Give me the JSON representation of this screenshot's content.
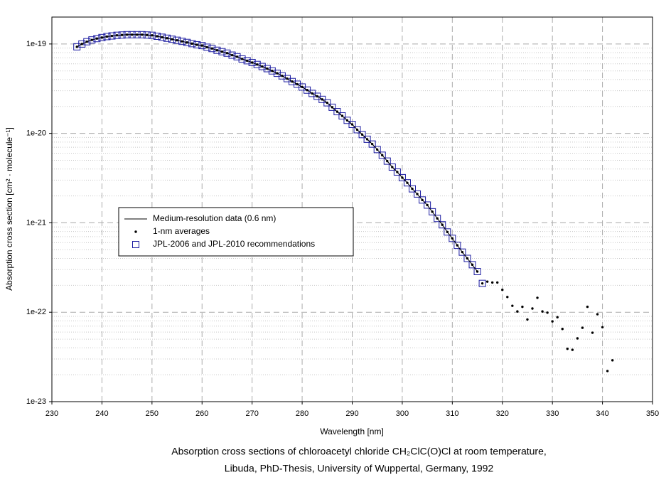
{
  "chart_data": {
    "type": "line",
    "caption": [
      "Absorption cross sections of chloroacetyl chloride CH₂ClC(O)Cl at room temperature,",
      "Libuda, PhD-Thesis, University of Wuppertal, Germany, 1992"
    ],
    "xlabel": "Wavelength [nm]",
    "ylabel": "Absorption cross section [cm² · molecule⁻¹]",
    "xlim": [
      230,
      350
    ],
    "xticks": [
      230,
      240,
      250,
      260,
      270,
      280,
      290,
      300,
      310,
      320,
      330,
      340,
      350
    ],
    "ylim": [
      1e-23,
      2e-19
    ],
    "yticks": [
      1e-23,
      1e-22,
      1e-21,
      1e-20,
      1e-19
    ],
    "yminorticks": [
      2e-23,
      3e-23,
      4e-23,
      5e-23,
      6e-23,
      7e-23,
      8e-23,
      9e-23,
      2e-22,
      3e-22,
      4e-22,
      5e-22,
      6e-22,
      7e-22,
      8e-22,
      9e-22,
      2e-21,
      3e-21,
      4e-21,
      5e-21,
      6e-21,
      7e-21,
      8e-21,
      9e-21,
      2e-20,
      3e-20,
      4e-20,
      5e-20,
      6e-20,
      7e-20,
      8e-20,
      9e-20
    ],
    "ylog": true,
    "grid": true,
    "legend": "center-left",
    "series": [
      {
        "name": "Medium-resolution data (0.6 nm)",
        "style": "line",
        "color": "#000000",
        "x": [
          235,
          236,
          237,
          238,
          239,
          240,
          241,
          242,
          243,
          244,
          245,
          246,
          247,
          248,
          249,
          250,
          251,
          252,
          253,
          254,
          255,
          256,
          257,
          258,
          259,
          260,
          261,
          262,
          263,
          264,
          265,
          266,
          267,
          268,
          269,
          270,
          271,
          272,
          273,
          274,
          275,
          276,
          277,
          278,
          279,
          280,
          281,
          282,
          283,
          284,
          285,
          286,
          287,
          288,
          289,
          290,
          291,
          292,
          293,
          294,
          295,
          296,
          297,
          298,
          299,
          300,
          301,
          302,
          303,
          304,
          305,
          306,
          307,
          308,
          309,
          310,
          311,
          312,
          313,
          314,
          315
        ],
        "values": [
          9.3e-20,
          1e-19,
          1.06e-19,
          1.11e-19,
          1.15e-19,
          1.18e-19,
          1.21e-19,
          1.23e-19,
          1.25e-19,
          1.26e-19,
          1.27e-19,
          1.27e-19,
          1.27e-19,
          1.27e-19,
          1.26e-19,
          1.25e-19,
          1.22e-19,
          1.19e-19,
          1.16e-19,
          1.13e-19,
          1.1e-19,
          1.07e-19,
          1.04e-19,
          1.01e-19,
          9.8e-20,
          9.6e-20,
          9.2e-20,
          8.9e-20,
          8.5e-20,
          8.2e-20,
          7.9e-20,
          7.5e-20,
          7.2e-20,
          6.8e-20,
          6.5e-20,
          6.2e-20,
          5.9e-20,
          5.6e-20,
          5.3e-20,
          5e-20,
          4.7e-20,
          4.4e-20,
          4.1e-20,
          3.8e-20,
          3.55e-20,
          3.3e-20,
          3.05e-20,
          2.8e-20,
          2.6e-20,
          2.4e-20,
          2.2e-20,
          1.96e-20,
          1.75e-20,
          1.57e-20,
          1.4e-20,
          1.26e-20,
          1.1e-20,
          9.7e-21,
          8.6e-21,
          7.6e-21,
          6.6e-21,
          5.7e-21,
          4.9e-21,
          4.2e-21,
          3.7e-21,
          3.2e-21,
          2.8e-21,
          2.4e-21,
          2.1e-21,
          1.8e-21,
          1.58e-21,
          1.33e-21,
          1.12e-21,
          9.5e-22,
          7.9e-22,
          6.7e-22,
          5.6e-22,
          4.7e-22,
          4e-22,
          3.4e-22,
          2.85e-22
        ]
      },
      {
        "name": "1-nm averages",
        "style": "dot",
        "color": "#000000",
        "x": [
          235,
          236,
          237,
          238,
          239,
          240,
          241,
          242,
          243,
          244,
          245,
          246,
          247,
          248,
          249,
          250,
          251,
          252,
          253,
          254,
          255,
          256,
          257,
          258,
          259,
          260,
          261,
          262,
          263,
          264,
          265,
          266,
          267,
          268,
          269,
          270,
          271,
          272,
          273,
          274,
          275,
          276,
          277,
          278,
          279,
          280,
          281,
          282,
          283,
          284,
          285,
          286,
          287,
          288,
          289,
          290,
          291,
          292,
          293,
          294,
          295,
          296,
          297,
          298,
          299,
          300,
          301,
          302,
          303,
          304,
          305,
          306,
          307,
          308,
          309,
          310,
          311,
          312,
          313,
          314,
          315,
          316,
          317,
          318,
          319,
          320,
          321,
          322,
          323,
          324,
          325,
          326,
          327,
          328,
          329,
          330,
          331,
          332,
          333,
          334,
          335,
          336,
          337,
          338,
          339,
          340,
          341,
          342
        ],
        "values": [
          9.3e-20,
          1e-19,
          1.06e-19,
          1.11e-19,
          1.15e-19,
          1.18e-19,
          1.21e-19,
          1.23e-19,
          1.25e-19,
          1.26e-19,
          1.27e-19,
          1.27e-19,
          1.27e-19,
          1.27e-19,
          1.26e-19,
          1.25e-19,
          1.22e-19,
          1.19e-19,
          1.16e-19,
          1.13e-19,
          1.1e-19,
          1.07e-19,
          1.04e-19,
          1.01e-19,
          9.8e-20,
          9.6e-20,
          9.2e-20,
          8.9e-20,
          8.5e-20,
          8.2e-20,
          7.9e-20,
          7.5e-20,
          7.2e-20,
          6.8e-20,
          6.5e-20,
          6.2e-20,
          5.9e-20,
          5.6e-20,
          5.3e-20,
          5e-20,
          4.7e-20,
          4.4e-20,
          4.1e-20,
          3.8e-20,
          3.55e-20,
          3.3e-20,
          3.05e-20,
          2.8e-20,
          2.6e-20,
          2.4e-20,
          2.2e-20,
          1.96e-20,
          1.75e-20,
          1.57e-20,
          1.4e-20,
          1.26e-20,
          1.1e-20,
          9.7e-21,
          8.6e-21,
          7.6e-21,
          6.6e-21,
          5.7e-21,
          4.9e-21,
          4.2e-21,
          3.7e-21,
          3.2e-21,
          2.8e-21,
          2.4e-21,
          2.1e-21,
          1.8e-21,
          1.58e-21,
          1.33e-21,
          1.12e-21,
          9.5e-22,
          7.9e-22,
          6.7e-22,
          5.6e-22,
          4.7e-22,
          4e-22,
          3.4e-22,
          2.85e-22,
          2.1e-22,
          2.2e-22,
          2.15e-22,
          2.15e-22,
          1.78e-22,
          1.48e-22,
          1.18e-22,
          1.02e-22,
          1.15e-22,
          8.3e-23,
          1.1e-22,
          1.45e-22,
          1.02e-22,
          9.9e-23,
          7.9e-23,
          8.8e-23,
          6.5e-23,
          3.9e-23,
          3.8e-23,
          5.1e-23,
          6.7e-23,
          1.15e-22,
          5.9e-23,
          9.5e-23,
          6.8e-23,
          2.2e-23,
          2.9e-23
        ]
      },
      {
        "name": "JPL-2006 and JPL-2010 recommendations",
        "style": "square",
        "color": "#1a1aa0",
        "x": [
          235,
          236,
          237,
          238,
          239,
          240,
          241,
          242,
          243,
          244,
          245,
          246,
          247,
          248,
          249,
          250,
          251,
          252,
          253,
          254,
          255,
          256,
          257,
          258,
          259,
          260,
          261,
          262,
          263,
          264,
          265,
          266,
          267,
          268,
          269,
          270,
          271,
          272,
          273,
          274,
          275,
          276,
          277,
          278,
          279,
          280,
          281,
          282,
          283,
          284,
          285,
          286,
          287,
          288,
          289,
          290,
          291,
          292,
          293,
          294,
          295,
          296,
          297,
          298,
          299,
          300,
          301,
          302,
          303,
          304,
          305,
          306,
          307,
          308,
          309,
          310,
          311,
          312,
          313,
          314,
          315,
          316
        ],
        "values": [
          9.3e-20,
          1e-19,
          1.06e-19,
          1.11e-19,
          1.15e-19,
          1.18e-19,
          1.21e-19,
          1.23e-19,
          1.25e-19,
          1.26e-19,
          1.27e-19,
          1.27e-19,
          1.27e-19,
          1.27e-19,
          1.26e-19,
          1.25e-19,
          1.22e-19,
          1.19e-19,
          1.16e-19,
          1.13e-19,
          1.1e-19,
          1.07e-19,
          1.04e-19,
          1.01e-19,
          9.8e-20,
          9.6e-20,
          9.2e-20,
          8.9e-20,
          8.5e-20,
          8.2e-20,
          7.9e-20,
          7.5e-20,
          7.2e-20,
          6.8e-20,
          6.5e-20,
          6.2e-20,
          5.9e-20,
          5.6e-20,
          5.3e-20,
          5e-20,
          4.7e-20,
          4.4e-20,
          4.1e-20,
          3.8e-20,
          3.55e-20,
          3.3e-20,
          3.05e-20,
          2.8e-20,
          2.6e-20,
          2.4e-20,
          2.2e-20,
          1.96e-20,
          1.75e-20,
          1.57e-20,
          1.4e-20,
          1.26e-20,
          1.1e-20,
          9.7e-21,
          8.6e-21,
          7.6e-21,
          6.6e-21,
          5.7e-21,
          4.9e-21,
          4.2e-21,
          3.7e-21,
          3.2e-21,
          2.8e-21,
          2.4e-21,
          2.1e-21,
          1.8e-21,
          1.58e-21,
          1.33e-21,
          1.12e-21,
          9.5e-22,
          7.9e-22,
          6.7e-22,
          5.6e-22,
          4.7e-22,
          4e-22,
          3.4e-22,
          2.85e-22,
          2.1e-22
        ]
      }
    ]
  }
}
